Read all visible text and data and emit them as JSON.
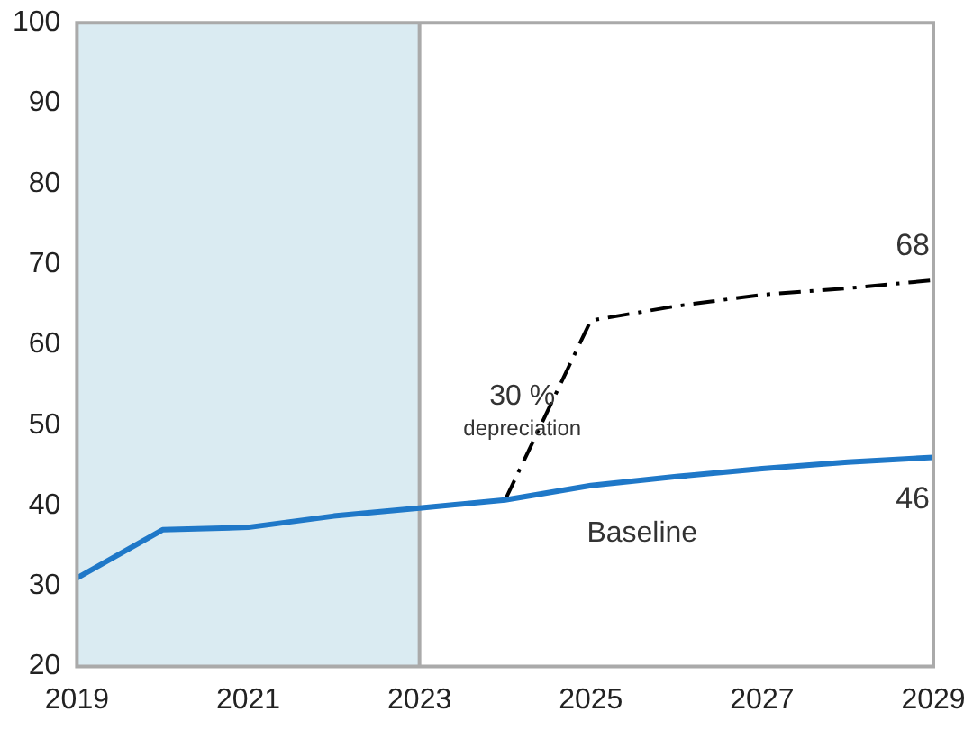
{
  "chart_data": {
    "type": "line",
    "x": [
      2019,
      2020,
      2021,
      2022,
      2023,
      2024,
      2025,
      2026,
      2027,
      2028,
      2029
    ],
    "series": [
      {
        "color": "#1f78c8",
        "line_style": "solid",
        "values": [
          31,
          37,
          37.3,
          38.7,
          39.7,
          40.7,
          42.5,
          43.6,
          44.6,
          45.4,
          46
        ],
        "value_labels": [
          null,
          null,
          null,
          null,
          null,
          null,
          null,
          null,
          null,
          null,
          "46"
        ]
      },
      {
        "color": "#000000",
        "line_style": "dashed",
        "values": [
          null,
          null,
          null,
          null,
          null,
          40.7,
          63,
          64.8,
          66.2,
          67,
          68
        ],
        "value_labels": [
          null,
          null,
          null,
          null,
          null,
          null,
          null,
          null,
          null,
          null,
          "68"
        ]
      }
    ],
    "xlim": [
      2019,
      2029
    ],
    "xticks": [
      2019,
      2021,
      2023,
      2025,
      2027,
      2029
    ],
    "ylim": [
      20,
      100
    ],
    "yticks": [
      20,
      30,
      40,
      50,
      60,
      70,
      80,
      90,
      100
    ],
    "grid": false,
    "legend": false,
    "marker": "none",
    "bands": [
      {
        "axis": "x",
        "from": 2019,
        "to": 2023,
        "color": "#daebf2"
      }
    ],
    "ref_lines": [
      {
        "axis": "x",
        "value": 2023,
        "color": "#aaaaaa"
      }
    ],
    "annotations": [
      "30 %",
      "depreciation",
      "Baseline"
    ]
  }
}
